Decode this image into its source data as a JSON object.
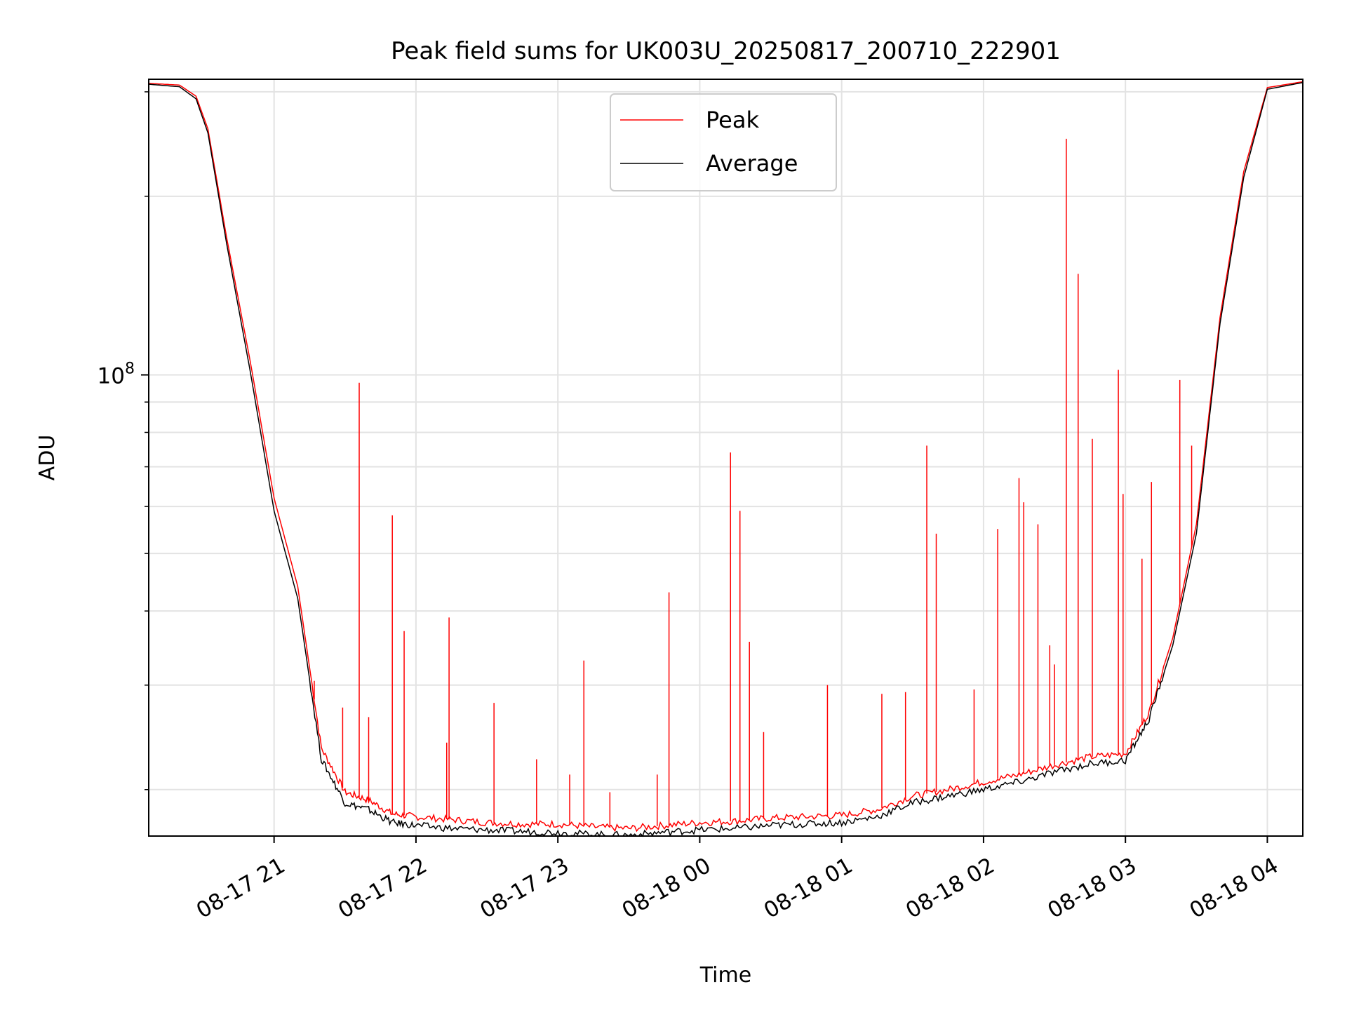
{
  "chart_data": {
    "type": "line",
    "title": "Peak field sums for UK003U_20250817_200710_222901",
    "xlabel": "Time",
    "ylabel": "ADU",
    "yscale": "log",
    "xlim": [
      "2025-08-17 20:07",
      "2025-08-18 04:15"
    ],
    "ylim": [
      16700000,
      315000000
    ],
    "grid": true,
    "legend": "upper center",
    "x_ticks": [
      "2025-08-17 21:00",
      "2025-08-17 22:00",
      "2025-08-17 23:00",
      "2025-08-18 00:00",
      "2025-08-18 01:00",
      "2025-08-18 02:00",
      "2025-08-18 03:00",
      "2025-08-18 04:00"
    ],
    "x_tick_labels": [
      "08-17 21",
      "08-17 22",
      "08-17 23",
      "08-18 00",
      "08-18 01",
      "08-18 02",
      "08-18 03",
      "08-18 04"
    ],
    "y_tick_major": [
      100000000
    ],
    "y_tick_major_labels": [
      "10",
      "8"
    ],
    "y_tick_minor": [
      20000000,
      30000000,
      40000000,
      50000000,
      60000000,
      70000000,
      80000000,
      90000000,
      200000000,
      300000000
    ],
    "series": [
      {
        "name": "Peak",
        "color": "#ff0000",
        "x": [
          "2025-08-17 20:07",
          "2025-08-17 20:20",
          "2025-08-17 20:27",
          "2025-08-17 20:32",
          "2025-08-17 20:40",
          "2025-08-17 20:50",
          "2025-08-17 21:00",
          "2025-08-17 21:10",
          "2025-08-17 21:20",
          "2025-08-17 21:30",
          "2025-08-17 21:40",
          "2025-08-17 21:50",
          "2025-08-17 22:00",
          "2025-08-17 22:15",
          "2025-08-17 22:30",
          "2025-08-17 22:45",
          "2025-08-17 23:00",
          "2025-08-17 23:15",
          "2025-08-17 23:30",
          "2025-08-17 23:45",
          "2025-08-18 00:00",
          "2025-08-18 00:15",
          "2025-08-18 00:30",
          "2025-08-18 00:45",
          "2025-08-18 01:00",
          "2025-08-18 01:15",
          "2025-08-18 01:30",
          "2025-08-18 01:45",
          "2025-08-18 02:00",
          "2025-08-18 02:15",
          "2025-08-18 02:30",
          "2025-08-18 02:45",
          "2025-08-18 03:00",
          "2025-08-18 03:10",
          "2025-08-18 03:20",
          "2025-08-18 03:30",
          "2025-08-18 03:40",
          "2025-08-18 03:50",
          "2025-08-18 04:00",
          "2025-08-18 04:15"
        ],
        "y": [
          310000000,
          308000000,
          295000000,
          260000000,
          170000000,
          105000000,
          62000000,
          44000000,
          23500000,
          19800000,
          19200000,
          18200000,
          18000000,
          17800000,
          17600000,
          17500000,
          17500000,
          17300000,
          17200000,
          17400000,
          17600000,
          17700000,
          17900000,
          18000000,
          18100000,
          18500000,
          19500000,
          20000000,
          20600000,
          21200000,
          22000000,
          22700000,
          23000000,
          27000000,
          36000000,
          56000000,
          125000000,
          220000000,
          305000000,
          312000000
        ],
        "spikes": [
          {
            "x": "2025-08-17 21:17",
            "y": 30500000
          },
          {
            "x": "2025-08-17 21:29",
            "y": 27500000
          },
          {
            "x": "2025-08-17 21:36",
            "y": 97000000
          },
          {
            "x": "2025-08-17 21:40",
            "y": 26500000
          },
          {
            "x": "2025-08-17 21:50",
            "y": 58000000
          },
          {
            "x": "2025-08-17 21:55",
            "y": 37000000
          },
          {
            "x": "2025-08-17 22:13",
            "y": 24000000
          },
          {
            "x": "2025-08-17 22:14",
            "y": 39000000
          },
          {
            "x": "2025-08-17 22:33",
            "y": 28000000
          },
          {
            "x": "2025-08-17 22:51",
            "y": 22500000
          },
          {
            "x": "2025-08-17 23:05",
            "y": 21200000
          },
          {
            "x": "2025-08-17 23:11",
            "y": 33000000
          },
          {
            "x": "2025-08-17 23:22",
            "y": 19800000
          },
          {
            "x": "2025-08-17 23:42",
            "y": 21200000
          },
          {
            "x": "2025-08-17 23:47",
            "y": 43000000
          },
          {
            "x": "2025-08-18 00:13",
            "y": 74000000
          },
          {
            "x": "2025-08-18 00:17",
            "y": 59000000
          },
          {
            "x": "2025-08-18 00:21",
            "y": 35500000
          },
          {
            "x": "2025-08-18 00:27",
            "y": 25000000
          },
          {
            "x": "2025-08-18 00:54",
            "y": 30000000
          },
          {
            "x": "2025-08-18 01:17",
            "y": 29000000
          },
          {
            "x": "2025-08-18 01:27",
            "y": 29200000
          },
          {
            "x": "2025-08-18 01:36",
            "y": 76000000
          },
          {
            "x": "2025-08-18 01:40",
            "y": 54000000
          },
          {
            "x": "2025-08-18 01:56",
            "y": 29500000
          },
          {
            "x": "2025-08-18 02:06",
            "y": 55000000
          },
          {
            "x": "2025-08-18 02:15",
            "y": 67000000
          },
          {
            "x": "2025-08-18 02:17",
            "y": 61000000
          },
          {
            "x": "2025-08-18 02:23",
            "y": 56000000
          },
          {
            "x": "2025-08-18 02:28",
            "y": 35000000
          },
          {
            "x": "2025-08-18 02:30",
            "y": 32500000
          },
          {
            "x": "2025-08-18 02:35",
            "y": 250000000
          },
          {
            "x": "2025-08-18 02:40",
            "y": 148000000
          },
          {
            "x": "2025-08-18 02:46",
            "y": 78000000
          },
          {
            "x": "2025-08-18 02:57",
            "y": 102000000
          },
          {
            "x": "2025-08-18 02:59",
            "y": 63000000
          },
          {
            "x": "2025-08-18 03:07",
            "y": 49000000
          },
          {
            "x": "2025-08-18 03:11",
            "y": 66000000
          },
          {
            "x": "2025-08-18 03:23",
            "y": 98000000
          },
          {
            "x": "2025-08-18 03:28",
            "y": 76000000
          }
        ]
      },
      {
        "name": "Average",
        "color": "#000000",
        "x": [
          "2025-08-17 20:07",
          "2025-08-17 20:20",
          "2025-08-17 20:27",
          "2025-08-17 20:32",
          "2025-08-17 20:40",
          "2025-08-17 20:50",
          "2025-08-17 21:00",
          "2025-08-17 21:10",
          "2025-08-17 21:20",
          "2025-08-17 21:30",
          "2025-08-17 21:40",
          "2025-08-17 21:50",
          "2025-08-17 22:00",
          "2025-08-17 22:15",
          "2025-08-17 22:30",
          "2025-08-17 22:45",
          "2025-08-17 23:00",
          "2025-08-17 23:15",
          "2025-08-17 23:30",
          "2025-08-17 23:45",
          "2025-08-18 00:00",
          "2025-08-18 00:15",
          "2025-08-18 00:30",
          "2025-08-18 00:45",
          "2025-08-18 01:00",
          "2025-08-18 01:15",
          "2025-08-18 01:30",
          "2025-08-18 01:45",
          "2025-08-18 02:00",
          "2025-08-18 02:15",
          "2025-08-18 02:30",
          "2025-08-18 02:45",
          "2025-08-18 03:00",
          "2025-08-18 03:10",
          "2025-08-18 03:20",
          "2025-08-18 03:30",
          "2025-08-18 03:40",
          "2025-08-18 03:50",
          "2025-08-18 04:00",
          "2025-08-18 04:15"
        ],
        "y": [
          309000000,
          306000000,
          292000000,
          256000000,
          166000000,
          101000000,
          59000000,
          42000000,
          22500000,
          19000000,
          18500000,
          17600000,
          17400000,
          17200000,
          17100000,
          17000000,
          16950000,
          16800000,
          16750000,
          16950000,
          17100000,
          17200000,
          17400000,
          17500000,
          17600000,
          18000000,
          19000000,
          19500000,
          20000000,
          20600000,
          21400000,
          22100000,
          22400000,
          26300000,
          35000000,
          54000000,
          122000000,
          215000000,
          303000000,
          311000000
        ]
      }
    ]
  }
}
